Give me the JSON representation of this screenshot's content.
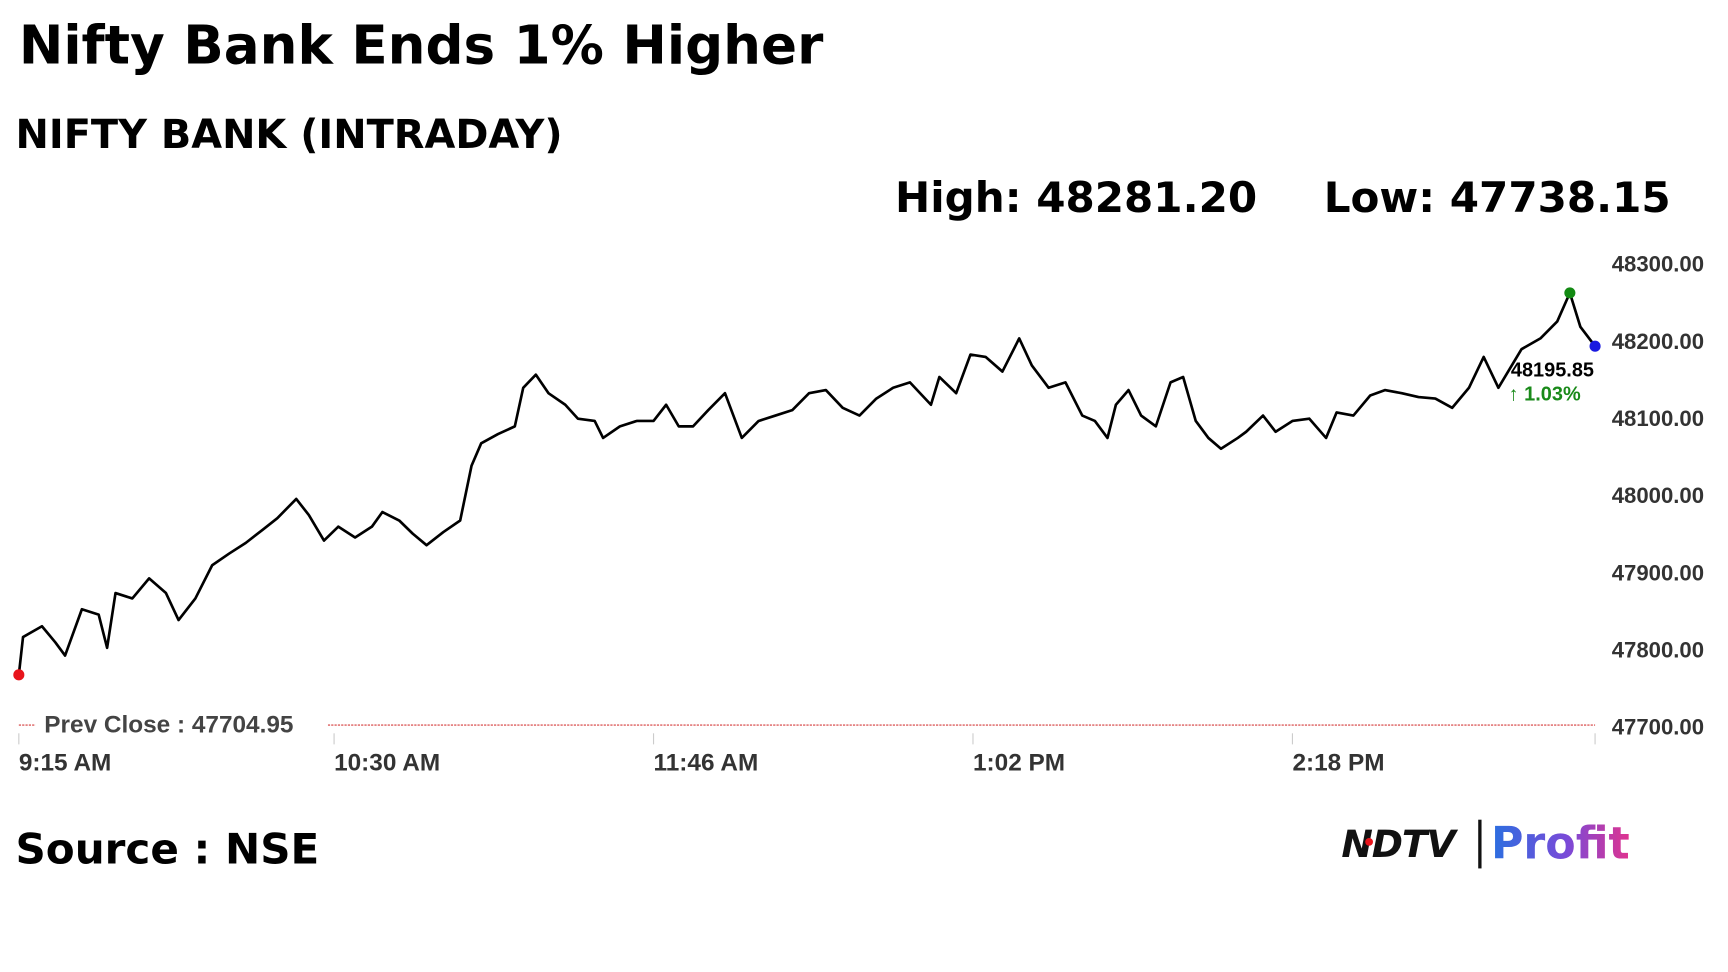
{
  "chart_data": {
    "type": "line",
    "title": "Nifty Bank Ends 1% Higher",
    "subtitle": "NIFTY BANK (INTRADAY)",
    "high_text": "High: 48281.20",
    "low_text": "Low: 47738.15",
    "change_text": "↑ 1.03%",
    "source": "Source : NSE",
    "brand": {
      "name": "NDTV",
      "product": "Profit"
    },
    "prev_close": {
      "value": 47704.95,
      "label": "Prev Close : 47704.95"
    },
    "xlim": [
      0,
      375
    ],
    "xticks": [
      {
        "value": 0,
        "label": "9:15 AM"
      },
      {
        "value": 75,
        "label": "10:30 AM"
      },
      {
        "value": 151,
        "label": "11:46 AM"
      },
      {
        "value": 227,
        "label": "1:02 PM"
      },
      {
        "value": 303,
        "label": "2:18 PM"
      }
    ],
    "ylim": [
      47700,
      48300
    ],
    "yticks": [
      {
        "value": 47700,
        "label": "47700.00"
      },
      {
        "value": 47800,
        "label": "47800.00"
      },
      {
        "value": 47900,
        "label": "47900.00"
      },
      {
        "value": 48000,
        "label": "48000.00"
      },
      {
        "value": 48100,
        "label": "48100.00"
      },
      {
        "value": 48200,
        "label": "48200.00"
      },
      {
        "value": 48300,
        "label": "48300.00"
      }
    ],
    "grid": false,
    "x": [
      0,
      1,
      5.5,
      8.7,
      11,
      15,
      19,
      21,
      23,
      27,
      31,
      35,
      38,
      42,
      46,
      50,
      54,
      58,
      61.5,
      66,
      69,
      72.6,
      76,
      80,
      84,
      86.5,
      90.5,
      93.7,
      97,
      101,
      105,
      107.7,
      110,
      114,
      118,
      120,
      123,
      126,
      130,
      133,
      137,
      139,
      143,
      147,
      151,
      154,
      157,
      160.4,
      164,
      168,
      172,
      176,
      180,
      184,
      188,
      192,
      196,
      200,
      204,
      208,
      212,
      217,
      219,
      223,
      226.4,
      230,
      234,
      238,
      241,
      245,
      249,
      253,
      256,
      259,
      261,
      264,
      267,
      270.5,
      274,
      277,
      280,
      283,
      286,
      290,
      292,
      296,
      299,
      303,
      307,
      311,
      313.5,
      317.5,
      321.5,
      325,
      329,
      333,
      337,
      341,
      345,
      348.5,
      352,
      357.5,
      362,
      366,
      369,
      371.5,
      375
    ],
    "series": [
      {
        "name": "NIFTY BANK",
        "color": "#000000",
        "values": [
          47770,
          47819,
          47833,
          47812,
          47795,
          47855,
          47848,
          47805,
          47876,
          47869,
          47895,
          47876,
          47841,
          47869,
          47912,
          47927,
          47941,
          47958,
          47973,
          47998,
          47977,
          47944,
          47962,
          47948,
          47962,
          47981,
          47970,
          47953,
          47938,
          47955,
          47970,
          48041,
          48070,
          48082,
          48092,
          48142,
          48159,
          48135,
          48120,
          48102,
          48099,
          48077,
          48092,
          48099,
          48099,
          48120,
          48092,
          48092,
          48113,
          48135,
          48077,
          48099,
          48106,
          48113,
          48135,
          48139,
          48116,
          48106,
          48128,
          48142,
          48149,
          48120,
          48156,
          48135,
          48185,
          48182,
          48163,
          48206,
          48171,
          48142,
          48149,
          48106,
          48099,
          48077,
          48120,
          48139,
          48106,
          48092,
          48149,
          48156,
          48099,
          48077,
          48063,
          48077,
          48085,
          48106,
          48085,
          48099,
          48102,
          48077,
          48110,
          48106,
          48132,
          48139,
          48135,
          48130,
          48128,
          48116,
          48142,
          48182,
          48142,
          48192,
          48206,
          48228,
          48265,
          48221,
          48195.85
        ]
      }
    ],
    "start_color": "#e8141b",
    "high_color": "#138a13",
    "end_color": "#1a1ae0",
    "prev_close_color": "#d43a3a"
  }
}
